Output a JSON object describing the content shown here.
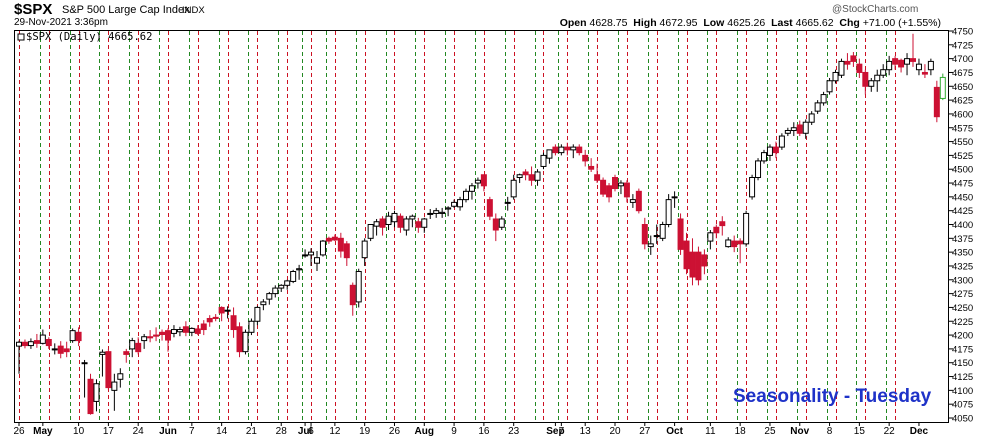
{
  "header": {
    "symbol": "$SPX",
    "name": "S&P 500 Large Cap Index",
    "exchange": "INDX",
    "watermark": "@StockCharts.com",
    "datetime": "29-Nov-2021 3:36pm",
    "open_label": "Open",
    "open": "4628.75",
    "high_label": "High",
    "high": "4672.95",
    "low_label": "Low",
    "low": "4625.26",
    "last_label": "Last",
    "last": "4665.62",
    "chg_label": "Chg",
    "chg": "+71.00 (+1.55%)"
  },
  "legend": {
    "text": "$SPX (Daily) 4665.62"
  },
  "annotation": "Seasonality - Tuesday",
  "colors": {
    "up": "#000000",
    "down": "#cc1133",
    "last_up": "#33aa33",
    "tuesday_line": "#cc1122",
    "week_line": "#228822",
    "border": "#000000"
  },
  "chart_data": {
    "type": "candlestick",
    "grid": "vertical dashed lines: red on Tuesdays, green on week starts",
    "ylim": [
      4050,
      4750
    ],
    "y_ticks": [
      4050,
      4075,
      4100,
      4125,
      4150,
      4175,
      4200,
      4225,
      4250,
      4275,
      4300,
      4325,
      4350,
      4375,
      4400,
      4425,
      4450,
      4475,
      4500,
      4525,
      4550,
      4575,
      4600,
      4625,
      4650,
      4675,
      4700,
      4725,
      4750
    ],
    "x_tick_labels": [
      {
        "i": 0,
        "label": "26",
        "bold": false
      },
      {
        "i": 4,
        "label": "May",
        "bold": true
      },
      {
        "i": 10,
        "label": "10",
        "bold": false
      },
      {
        "i": 15,
        "label": "17",
        "bold": false
      },
      {
        "i": 20,
        "label": "24",
        "bold": false
      },
      {
        "i": 25,
        "label": "Jun",
        "bold": true
      },
      {
        "i": 29,
        "label": "7",
        "bold": false
      },
      {
        "i": 34,
        "label": "14",
        "bold": false
      },
      {
        "i": 39,
        "label": "21",
        "bold": false
      },
      {
        "i": 44,
        "label": "28",
        "bold": false
      },
      {
        "i": 48,
        "label": "Jul",
        "bold": true
      },
      {
        "i": 49,
        "label": "6",
        "bold": false
      },
      {
        "i": 53,
        "label": "12",
        "bold": false
      },
      {
        "i": 58,
        "label": "19",
        "bold": false
      },
      {
        "i": 63,
        "label": "26",
        "bold": false
      },
      {
        "i": 68,
        "label": "Aug",
        "bold": true
      },
      {
        "i": 73,
        "label": "9",
        "bold": false
      },
      {
        "i": 78,
        "label": "16",
        "bold": false
      },
      {
        "i": 83,
        "label": "23",
        "bold": false
      },
      {
        "i": 90,
        "label": "Sep",
        "bold": true
      },
      {
        "i": 91,
        "label": "7",
        "bold": false
      },
      {
        "i": 95,
        "label": "13",
        "bold": false
      },
      {
        "i": 100,
        "label": "20",
        "bold": false
      },
      {
        "i": 105,
        "label": "27",
        "bold": false
      },
      {
        "i": 110,
        "label": "Oct",
        "bold": true
      },
      {
        "i": 116,
        "label": "11",
        "bold": false
      },
      {
        "i": 121,
        "label": "18",
        "bold": false
      },
      {
        "i": 126,
        "label": "25",
        "bold": false
      },
      {
        "i": 131,
        "label": "Nov",
        "bold": true
      },
      {
        "i": 136,
        "label": "8",
        "bold": false
      },
      {
        "i": 141,
        "label": "15",
        "bold": false
      },
      {
        "i": 146,
        "label": "22",
        "bold": false
      },
      {
        "i": 151,
        "label": "Dec",
        "bold": true
      }
    ],
    "green_line_indices": [
      4,
      9,
      14,
      19,
      24,
      29,
      34,
      39,
      44,
      48,
      52,
      57,
      62,
      67,
      72,
      77,
      82,
      87,
      91,
      96,
      101,
      106,
      111,
      116,
      121,
      126,
      131,
      136,
      141,
      146
    ],
    "red_line_indices": [
      0,
      5,
      10,
      15,
      20,
      25,
      30,
      35,
      40,
      45,
      49,
      53,
      58,
      63,
      68,
      73,
      78,
      83,
      88,
      92,
      97,
      102,
      107,
      112,
      117,
      122,
      127,
      132,
      137,
      142,
      147
    ],
    "candles": [
      [
        0,
        4180,
        4190,
        4130,
        4187
      ],
      [
        1,
        4187,
        4192,
        4176,
        4181
      ],
      [
        2,
        4181,
        4194,
        4175,
        4188
      ],
      [
        3,
        4190,
        4202,
        4177,
        4185
      ],
      [
        4,
        4185,
        4210,
        4183,
        4200
      ],
      [
        5,
        4192,
        4196,
        4175,
        4181
      ],
      [
        6,
        4175,
        4185,
        4165,
        4175
      ],
      [
        7,
        4180,
        4189,
        4158,
        4167
      ],
      [
        8,
        4175,
        4188,
        4160,
        4170
      ],
      [
        9,
        4190,
        4212,
        4186,
        4208
      ],
      [
        10,
        4205,
        4214,
        4180,
        4190
      ],
      [
        11,
        4150,
        4155,
        4087,
        4150
      ],
      [
        12,
        4120,
        4130,
        4056,
        4058
      ],
      [
        13,
        4080,
        4120,
        4062,
        4112
      ],
      [
        14,
        4165,
        4174,
        4125,
        4169
      ],
      [
        15,
        4170,
        4175,
        4101,
        4105
      ],
      [
        16,
        4100,
        4130,
        4063,
        4115
      ],
      [
        17,
        4120,
        4140,
        4105,
        4130
      ],
      [
        18,
        4170,
        4175,
        4150,
        4165
      ],
      [
        19,
        4175,
        4195,
        4160,
        4190
      ],
      [
        20,
        4185,
        4196,
        4165,
        4170
      ],
      [
        21,
        4190,
        4202,
        4175,
        4197
      ],
      [
        22,
        4197,
        4209,
        4187,
        4195
      ],
      [
        23,
        4200,
        4214,
        4189,
        4198
      ],
      [
        24,
        4205,
        4210,
        4190,
        4201
      ],
      [
        25,
        4208,
        4212,
        4170,
        4191
      ],
      [
        26,
        4203,
        4218,
        4196,
        4210
      ],
      [
        27,
        4206,
        4215,
        4198,
        4210
      ],
      [
        28,
        4215,
        4225,
        4198,
        4205
      ],
      [
        29,
        4205,
        4214,
        4198,
        4212
      ],
      [
        30,
        4211,
        4218,
        4200,
        4203
      ],
      [
        31,
        4220,
        4227,
        4200,
        4210
      ],
      [
        32,
        4230,
        4236,
        4215,
        4224
      ],
      [
        33,
        4232,
        4238,
        4225,
        4230
      ],
      [
        34,
        4250,
        4252,
        4225,
        4240
      ],
      [
        35,
        4245,
        4252,
        4230,
        4245
      ],
      [
        36,
        4235,
        4250,
        4195,
        4210
      ],
      [
        37,
        4215,
        4223,
        4160,
        4170
      ],
      [
        38,
        4170,
        4210,
        4165,
        4205
      ],
      [
        39,
        4205,
        4230,
        4200,
        4225
      ],
      [
        40,
        4225,
        4253,
        4218,
        4250
      ],
      [
        41,
        4255,
        4265,
        4245,
        4260
      ],
      [
        42,
        4265,
        4278,
        4255,
        4275
      ],
      [
        43,
        4275,
        4290,
        4268,
        4285
      ],
      [
        44,
        4285,
        4292,
        4278,
        4290
      ],
      [
        45,
        4290,
        4300,
        4282,
        4298
      ],
      [
        46,
        4297,
        4318,
        4294,
        4315
      ],
      [
        47,
        4318,
        4327,
        4300,
        4320
      ],
      [
        48,
        4345,
        4355,
        4340,
        4345
      ],
      [
        49,
        4345,
        4357,
        4325,
        4350
      ],
      [
        50,
        4330,
        4352,
        4316,
        4340
      ],
      [
        51,
        4345,
        4372,
        4342,
        4370
      ],
      [
        52,
        4375,
        4378,
        4365,
        4370
      ],
      [
        53,
        4377,
        4382,
        4370,
        4372
      ],
      [
        54,
        4375,
        4385,
        4340,
        4352
      ],
      [
        55,
        4365,
        4370,
        4325,
        4340
      ],
      [
        56,
        4290,
        4295,
        4235,
        4255
      ],
      [
        57,
        4260,
        4320,
        4250,
        4315
      ],
      [
        58,
        4340,
        4375,
        4325,
        4370
      ],
      [
        59,
        4375,
        4400,
        4370,
        4400
      ],
      [
        60,
        4397,
        4410,
        4380,
        4405
      ],
      [
        61,
        4410,
        4415,
        4380,
        4395
      ],
      [
        62,
        4400,
        4423,
        4390,
        4415
      ],
      [
        63,
        4405,
        4425,
        4395,
        4420
      ],
      [
        64,
        4415,
        4420,
        4385,
        4395
      ],
      [
        65,
        4390,
        4415,
        4380,
        4410
      ],
      [
        66,
        4410,
        4418,
        4395,
        4415
      ],
      [
        67,
        4405,
        4412,
        4385,
        4395
      ],
      [
        68,
        4395,
        4412,
        4385,
        4410
      ],
      [
        69,
        4420,
        4428,
        4410,
        4420
      ],
      [
        70,
        4420,
        4430,
        4412,
        4425
      ],
      [
        71,
        4420,
        4430,
        4412,
        4422
      ],
      [
        72,
        4428,
        4433,
        4415,
        4430
      ],
      [
        73,
        4433,
        4445,
        4430,
        4440
      ],
      [
        74,
        4432,
        4450,
        4425,
        4445
      ],
      [
        75,
        4445,
        4465,
        4440,
        4460
      ],
      [
        76,
        4460,
        4475,
        4445,
        4470
      ],
      [
        77,
        4475,
        4485,
        4465,
        4480
      ],
      [
        78,
        4490,
        4490,
        4460,
        4470
      ],
      [
        79,
        4445,
        4450,
        4408,
        4415
      ],
      [
        80,
        4410,
        4420,
        4370,
        4390
      ],
      [
        81,
        4395,
        4415,
        4390,
        4410
      ],
      [
        82,
        4440,
        4450,
        4425,
        4440
      ],
      [
        83,
        4450,
        4490,
        4445,
        4480
      ],
      [
        84,
        4485,
        4492,
        4475,
        4490
      ],
      [
        85,
        4495,
        4500,
        4480,
        4490
      ],
      [
        86,
        4490,
        4505,
        4470,
        4480
      ],
      [
        87,
        4480,
        4500,
        4470,
        4495
      ],
      [
        88,
        4505,
        4530,
        4500,
        4525
      ],
      [
        89,
        4520,
        4535,
        4510,
        4535
      ],
      [
        90,
        4540,
        4545,
        4525,
        4530
      ],
      [
        91,
        4530,
        4545,
        4525,
        4540
      ],
      [
        92,
        4540,
        4548,
        4525,
        4535
      ],
      [
        93,
        4535,
        4545,
        4520,
        4540
      ],
      [
        94,
        4540,
        4545,
        4525,
        4530
      ],
      [
        95,
        4525,
        4535,
        4505,
        4515
      ],
      [
        96,
        4505,
        4520,
        4495,
        4500
      ],
      [
        97,
        4490,
        4510,
        4475,
        4480
      ],
      [
        98,
        4480,
        4485,
        4450,
        4455
      ],
      [
        99,
        4470,
        4475,
        4440,
        4450
      ],
      [
        100,
        4485,
        4490,
        4460,
        4465
      ],
      [
        101,
        4470,
        4480,
        4455,
        4475
      ],
      [
        102,
        4475,
        4480,
        4440,
        4450
      ],
      [
        103,
        4440,
        4455,
        4430,
        4445
      ],
      [
        104,
        4460,
        4465,
        4420,
        4425
      ],
      [
        105,
        4400,
        4412,
        4355,
        4365
      ],
      [
        106,
        4360,
        4380,
        4345,
        4365
      ],
      [
        107,
        4380,
        4400,
        4365,
        4380
      ],
      [
        108,
        4375,
        4405,
        4370,
        4400
      ],
      [
        109,
        4400,
        4455,
        4395,
        4445
      ],
      [
        110,
        4450,
        4460,
        4430,
        4450
      ],
      [
        111,
        4410,
        4420,
        4345,
        4355
      ],
      [
        112,
        4370,
        4385,
        4310,
        4320
      ],
      [
        113,
        4350,
        4375,
        4290,
        4305
      ],
      [
        114,
        4350,
        4360,
        4290,
        4300
      ],
      [
        115,
        4345,
        4355,
        4310,
        4325
      ],
      [
        116,
        4370,
        4390,
        4355,
        4385
      ],
      [
        117,
        4395,
        4400,
        4375,
        4385
      ],
      [
        118,
        4405,
        4415,
        4380,
        4398
      ],
      [
        119,
        4360,
        4377,
        4358,
        4372
      ],
      [
        120,
        4370,
        4380,
        4350,
        4360
      ],
      [
        121,
        4370,
        4375,
        4330,
        4365
      ],
      [
        122,
        4365,
        4425,
        4360,
        4420
      ],
      [
        123,
        4450,
        4490,
        4445,
        4485
      ],
      [
        124,
        4485,
        4520,
        4480,
        4515
      ],
      [
        125,
        4515,
        4535,
        4510,
        4530
      ],
      [
        126,
        4525,
        4545,
        4515,
        4540
      ],
      [
        127,
        4540,
        4550,
        4520,
        4530
      ],
      [
        128,
        4540,
        4565,
        4535,
        4560
      ],
      [
        129,
        4565,
        4575,
        4560,
        4570
      ],
      [
        130,
        4570,
        4585,
        4560,
        4575
      ],
      [
        131,
        4580,
        4588,
        4560,
        4565
      ],
      [
        132,
        4565,
        4590,
        4555,
        4585
      ],
      [
        133,
        4585,
        4605,
        4580,
        4600
      ],
      [
        134,
        4605,
        4625,
        4600,
        4620
      ],
      [
        135,
        4620,
        4640,
        4615,
        4635
      ],
      [
        136,
        4640,
        4665,
        4635,
        4660
      ],
      [
        137,
        4660,
        4680,
        4655,
        4675
      ],
      [
        138,
        4670,
        4700,
        4665,
        4695
      ],
      [
        139,
        4695,
        4710,
        4680,
        4690
      ],
      [
        140,
        4705,
        4712,
        4685,
        4695
      ],
      [
        141,
        4690,
        4700,
        4665,
        4675
      ],
      [
        142,
        4675,
        4680,
        4635,
        4650
      ],
      [
        143,
        4650,
        4665,
        4640,
        4660
      ],
      [
        144,
        4660,
        4680,
        4640,
        4670
      ],
      [
        145,
        4670,
        4690,
        4665,
        4680
      ],
      [
        146,
        4680,
        4705,
        4670,
        4695
      ],
      [
        147,
        4700,
        4705,
        4680,
        4690
      ],
      [
        148,
        4697,
        4700,
        4675,
        4685
      ],
      [
        149,
        4690,
        4710,
        4670,
        4700
      ],
      [
        150,
        4700,
        4745,
        4685,
        4695
      ],
      [
        151,
        4680,
        4700,
        4670,
        4690
      ],
      [
        152,
        4675,
        4690,
        4665,
        4672
      ],
      [
        153,
        4680,
        4700,
        4670,
        4695
      ],
      [
        154,
        4648,
        4660,
        4585,
        4595
      ],
      [
        155,
        4628,
        4673,
        4625,
        4666
      ]
    ],
    "last_index": 155
  }
}
